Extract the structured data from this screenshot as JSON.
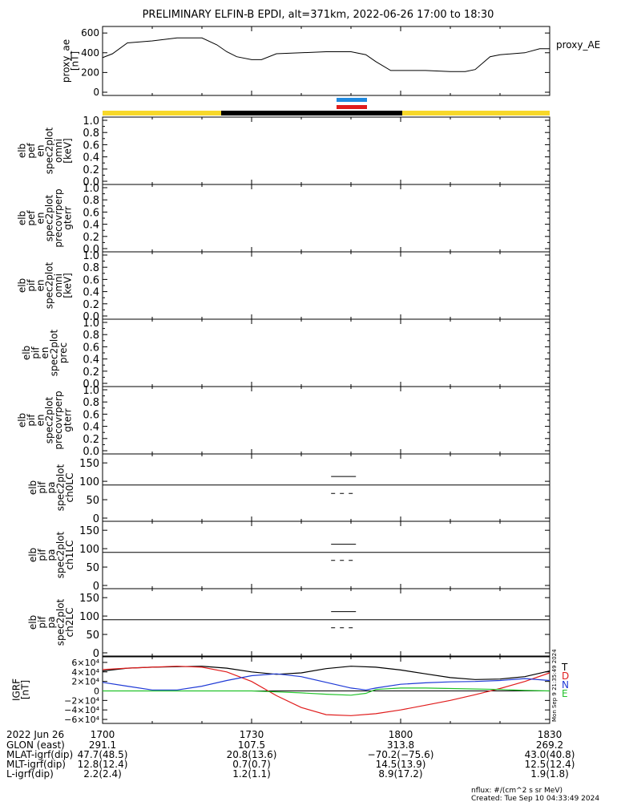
{
  "title": "PRELIMINARY ELFIN-B EPDI, alt=371km, 2022-06-26 17:00 to 18:30",
  "legend_proxy": "proxy_AE",
  "proxy_panel": {
    "ylabel": [
      "proxy_ae",
      "[nT]"
    ],
    "ticks": [
      "600",
      "400",
      "200",
      "0"
    ]
  },
  "spec_panels": [
    {
      "ylabel": [
        "elb",
        "pef",
        "en",
        "spec2plot",
        "omni",
        "[keV]"
      ]
    },
    {
      "ylabel": [
        "elb",
        "pef",
        "en",
        "spec2plot",
        "precovrperp",
        "gterr"
      ]
    },
    {
      "ylabel": [
        "elb",
        "pif",
        "en",
        "spec2plot",
        "omni",
        "[keV]"
      ]
    },
    {
      "ylabel": [
        "elb",
        "pif",
        "en",
        "spec2plot",
        "prec"
      ]
    },
    {
      "ylabel": [
        "elb",
        "pif",
        "en",
        "spec2plot",
        "precovrperp",
        "gterr"
      ]
    }
  ],
  "spec_ticks": [
    "1.0",
    "0.8",
    "0.6",
    "0.4",
    "0.2",
    "0.0"
  ],
  "pa_panels": [
    {
      "ylabel": [
        "elb",
        "pif",
        "pa",
        "spec2plot",
        "ch0LC"
      ]
    },
    {
      "ylabel": [
        "elb",
        "pif",
        "pa",
        "spec2plot",
        "ch1LC"
      ]
    },
    {
      "ylabel": [
        "elb",
        "pif",
        "pa",
        "spec2plot",
        "ch2LC"
      ]
    }
  ],
  "pa_ticks": [
    "150",
    "100",
    "50",
    "0"
  ],
  "igrf_panel": {
    "ylabel": [
      "IGRF",
      "[nT]"
    ],
    "ticks": [
      "6×10⁴",
      "4×10⁴",
      "2×10⁴",
      "0",
      "−2×10⁴",
      "−4×10⁴",
      "−6×10⁴"
    ],
    "legend": [
      {
        "label": "T",
        "color": "#000000"
      },
      {
        "label": "D",
        "color": "#e01c1c"
      },
      {
        "label": "N",
        "color": "#1f3ad6"
      },
      {
        "label": "E",
        "color": "#22c22a"
      }
    ]
  },
  "side_stamp": "Mon Sep  9 21:35:49 2024",
  "footer": {
    "date_label": "2022 Jun 26",
    "time_ticks": [
      "1700",
      "1730",
      "1800",
      "1830"
    ],
    "rows": [
      {
        "label": "GLON (east)",
        "values": [
          "291.1",
          "107.5",
          "313.8",
          "269.2"
        ]
      },
      {
        "label": "MLAT-igrf(dip)",
        "values": [
          "47.7(48.5)",
          "20.8(13.6)",
          "−70.2(−75.6)",
          "43.0(40.8)"
        ]
      },
      {
        "label": "MLT-igrf(dip)",
        "values": [
          "12.8(12.4)",
          "0.7(0.7)",
          "14.5(13.9)",
          "12.5(12.4)"
        ]
      },
      {
        "label": "L-igrf(dip)",
        "values": [
          "2.2(2.4)",
          "1.2(1.1)",
          "8.9(17.2)",
          "1.9(1.8)"
        ]
      }
    ],
    "nflux": "nflux: #/(cm^2 s sr MeV)",
    "created": "Created: Tue Sep 10 04:33:49 2024"
  },
  "colors": {
    "sunlit": "#f7d82a",
    "eclipse": "#000000",
    "ibo_blue": "#1f8ae0",
    "ibo_red": "#e01c1c"
  },
  "chart_data": [
    {
      "type": "line",
      "name": "proxy_AE",
      "ylabel": "proxy_ae [nT]",
      "xlim": [
        "17:00",
        "18:30"
      ],
      "ylim": [
        0,
        650
      ],
      "x": [
        "17:00",
        "17:02",
        "17:05",
        "17:10",
        "17:15",
        "17:20",
        "17:23",
        "17:25",
        "17:27",
        "17:30",
        "17:32",
        "17:35",
        "17:40",
        "17:45",
        "17:50",
        "17:53",
        "17:55",
        "17:58",
        "18:00",
        "18:05",
        "18:10",
        "18:13",
        "18:15",
        "18:18",
        "18:20",
        "18:25",
        "18:28",
        "18:30"
      ],
      "y": [
        350,
        390,
        500,
        520,
        550,
        550,
        480,
        410,
        360,
        330,
        330,
        390,
        400,
        410,
        410,
        380,
        310,
        220,
        220,
        220,
        210,
        210,
        230,
        360,
        380,
        400,
        440,
        440
      ]
    },
    {
      "type": "line",
      "name": "pif pa ch0LC",
      "ylim": [
        0,
        180
      ],
      "series": [
        {
          "style": "solid",
          "x": [
            "17:46",
            "17:51"
          ],
          "y": [
            113,
            113
          ]
        },
        {
          "style": "dashed",
          "x": [
            "17:46",
            "17:51"
          ],
          "y": [
            67,
            67
          ]
        }
      ]
    },
    {
      "type": "line",
      "name": "pif pa ch1LC",
      "ylim": [
        0,
        180
      ],
      "series": [
        {
          "style": "solid",
          "x": [
            "17:46",
            "17:51"
          ],
          "y": [
            112,
            112
          ]
        },
        {
          "style": "dashed",
          "x": [
            "17:46",
            "17:51"
          ],
          "y": [
            68,
            68
          ]
        }
      ]
    },
    {
      "type": "line",
      "name": "pif pa ch2LC",
      "ylim": [
        0,
        180
      ],
      "series": [
        {
          "style": "solid",
          "x": [
            "17:46",
            "17:51"
          ],
          "y": [
            112,
            112
          ]
        },
        {
          "style": "dashed",
          "x": [
            "17:46",
            "17:51"
          ],
          "y": [
            68,
            68
          ]
        }
      ]
    },
    {
      "type": "line",
      "name": "IGRF",
      "ylabel": "IGRF [nT]",
      "ylim": [
        -65000,
        65000
      ],
      "xlim": [
        "17:00",
        "18:30"
      ],
      "series": [
        {
          "name": "T",
          "color": "#000000",
          "x": [
            "17:00",
            "17:05",
            "17:10",
            "17:15",
            "17:20",
            "17:25",
            "17:30",
            "17:35",
            "17:40",
            "17:45",
            "17:50",
            "17:55",
            "18:00",
            "18:05",
            "18:10",
            "18:15",
            "18:20",
            "18:25",
            "18:30"
          ],
          "y": [
            42000,
            48000,
            50000,
            51000,
            52000,
            48000,
            40000,
            35000,
            38000,
            47000,
            52000,
            50000,
            44000,
            36000,
            28000,
            24000,
            25000,
            30000,
            42000
          ]
        },
        {
          "name": "D",
          "color": "#e01c1c",
          "x": [
            "17:00",
            "17:05",
            "17:10",
            "17:15",
            "17:20",
            "17:25",
            "17:30",
            "17:35",
            "17:40",
            "17:45",
            "17:50",
            "17:55",
            "18:00",
            "18:05",
            "18:10",
            "18:15",
            "18:20",
            "18:25",
            "18:30"
          ],
          "y": [
            45000,
            48000,
            50000,
            52000,
            50000,
            40000,
            20000,
            -10000,
            -35000,
            -50000,
            -52000,
            -48000,
            -40000,
            -30000,
            -20000,
            -8000,
            5000,
            20000,
            38000
          ]
        },
        {
          "name": "N",
          "color": "#1f3ad6",
          "x": [
            "17:00",
            "17:05",
            "17:10",
            "17:15",
            "17:20",
            "17:25",
            "17:30",
            "17:35",
            "17:40",
            "17:45",
            "17:50",
            "17:53",
            "17:55",
            "18:00",
            "18:05",
            "18:10",
            "18:15",
            "18:20",
            "18:25",
            "18:30"
          ],
          "y": [
            18000,
            10000,
            2000,
            2000,
            10000,
            22000,
            32000,
            36000,
            30000,
            18000,
            6000,
            2000,
            6000,
            14000,
            17000,
            19000,
            20000,
            22000,
            26000,
            22000
          ]
        },
        {
          "name": "E",
          "color": "#22c22a",
          "x": [
            "17:00",
            "17:10",
            "17:20",
            "17:30",
            "17:35",
            "17:40",
            "17:45",
            "17:50",
            "17:53",
            "17:55",
            "18:00",
            "18:05",
            "18:10",
            "18:15",
            "18:20",
            "18:25",
            "18:30"
          ],
          "y": [
            0,
            0,
            0,
            0,
            -2000,
            -4000,
            -7000,
            -9000,
            -5000,
            3000,
            6000,
            6000,
            5000,
            4000,
            3000,
            1000,
            0
          ]
        }
      ]
    }
  ]
}
